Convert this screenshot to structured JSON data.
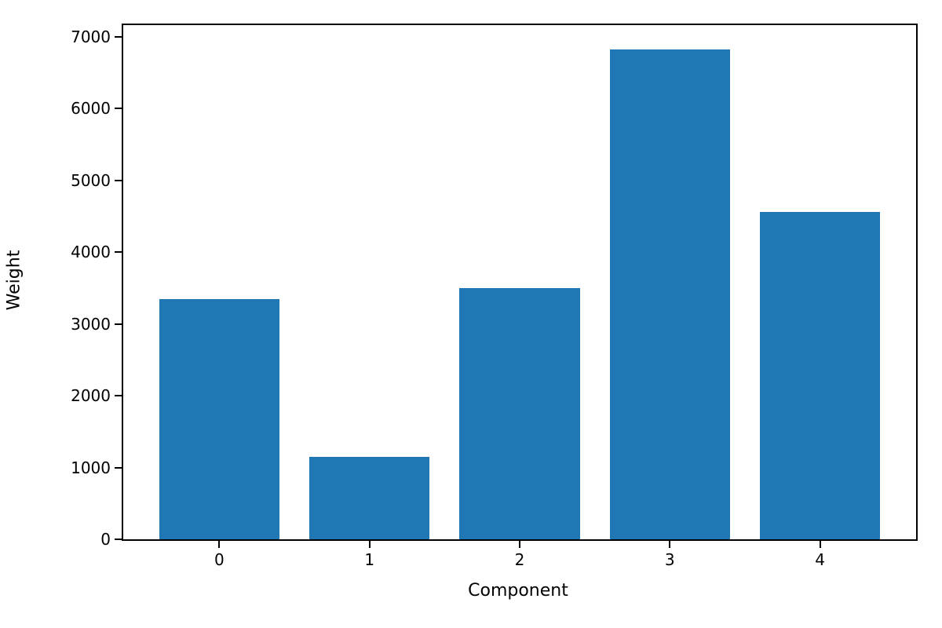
{
  "chart_data": {
    "type": "bar",
    "categories": [
      "0",
      "1",
      "2",
      "3",
      "4"
    ],
    "values": [
      3350,
      1150,
      3500,
      6820,
      4560
    ],
    "title": "",
    "xlabel": "Component",
    "ylabel": "Weight",
    "ylim": [
      0,
      7160
    ],
    "xlim": [
      -0.64,
      4.64
    ],
    "yticks": [
      0,
      1000,
      2000,
      3000,
      4000,
      5000,
      6000,
      7000
    ],
    "bar_width": 0.8,
    "bar_color": "#1f77b4",
    "grid": false,
    "legend": "none"
  }
}
